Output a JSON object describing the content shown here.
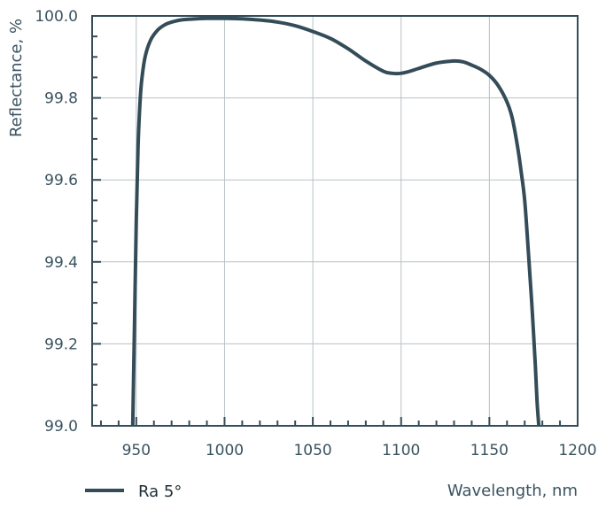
{
  "chart_data": {
    "type": "line",
    "xlabel": "Wavelength, nm",
    "ylabel": "Reflectance, %",
    "xlim": [
      925,
      1200
    ],
    "ylim": [
      99.0,
      100.0
    ],
    "x_ticks": [
      950,
      1000,
      1050,
      1100,
      1150,
      1200
    ],
    "x_tick_labels": [
      "950",
      "1000",
      "1050",
      "1100",
      "1150",
      "1200"
    ],
    "y_ticks": [
      99.0,
      99.2,
      99.4,
      99.6,
      99.8,
      100.0
    ],
    "y_tick_labels": [
      "99.0",
      "99.2",
      "99.4",
      "99.6",
      "99.8",
      "100.0"
    ],
    "x_minor_step": 10,
    "y_minor_step": 0.05,
    "grid": true,
    "legend_position": "bottom-left",
    "series": [
      {
        "name": "Ra 5°",
        "color": "#344c58",
        "x": [
          948,
          949,
          950,
          951,
          952,
          953,
          955,
          958,
          962,
          966,
          970,
          975,
          980,
          990,
          1000,
          1010,
          1020,
          1030,
          1040,
          1050,
          1060,
          1070,
          1080,
          1090,
          1095,
          1100,
          1105,
          1110,
          1120,
          1130,
          1135,
          1140,
          1145,
          1150,
          1155,
          1160,
          1163,
          1166,
          1168,
          1170,
          1172,
          1174,
          1176,
          1177,
          1178
        ],
        "y": [
          99.0,
          99.25,
          99.5,
          99.68,
          99.78,
          99.84,
          99.9,
          99.94,
          99.965,
          99.978,
          99.985,
          99.99,
          99.992,
          99.994,
          99.994,
          99.993,
          99.99,
          99.985,
          99.976,
          99.962,
          99.945,
          99.92,
          99.89,
          99.865,
          99.86,
          99.86,
          99.865,
          99.872,
          99.885,
          99.89,
          99.888,
          99.88,
          99.87,
          99.855,
          99.83,
          99.79,
          99.75,
          99.68,
          99.62,
          99.55,
          99.43,
          99.3,
          99.15,
          99.06,
          99.0
        ]
      }
    ]
  }
}
